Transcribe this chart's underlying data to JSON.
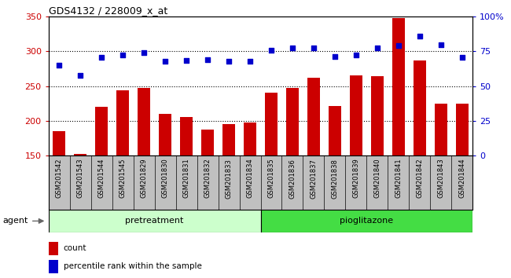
{
  "title": "GDS4132 / 228009_x_at",
  "categories": [
    "GSM201542",
    "GSM201543",
    "GSM201544",
    "GSM201545",
    "GSM201829",
    "GSM201830",
    "GSM201831",
    "GSM201832",
    "GSM201833",
    "GSM201834",
    "GSM201835",
    "GSM201836",
    "GSM201837",
    "GSM201838",
    "GSM201839",
    "GSM201840",
    "GSM201841",
    "GSM201842",
    "GSM201843",
    "GSM201844"
  ],
  "bar_values": [
    185,
    152,
    220,
    244,
    248,
    210,
    206,
    188,
    195,
    198,
    241,
    248,
    262,
    222,
    266,
    264,
    348,
    287,
    225,
    225
  ],
  "percentiles_left": [
    280,
    265,
    292,
    295,
    298,
    286,
    287,
    288,
    286,
    286,
    302,
    305,
    305,
    293,
    295,
    305,
    308,
    322,
    310,
    292
  ],
  "ylim_left": [
    150,
    350
  ],
  "ylim_right": [
    0,
    100
  ],
  "yticks_left": [
    150,
    200,
    250,
    300,
    350
  ],
  "yticks_right": [
    0,
    25,
    50,
    75,
    100
  ],
  "bar_color": "#cc0000",
  "scatter_color": "#0000cc",
  "bg_color": "#c0c0c0",
  "chart_bg": "#ffffff",
  "pretreatment_color": "#ccffcc",
  "pioglitazone_color": "#44dd44",
  "pretreatment_label": "pretreatment",
  "pioglitazone_label": "pioglitazone",
  "agent_label": "agent",
  "legend_count": "count",
  "legend_pct": "percentile rank within the sample",
  "pretreatment_count": 10,
  "n_bars": 20
}
